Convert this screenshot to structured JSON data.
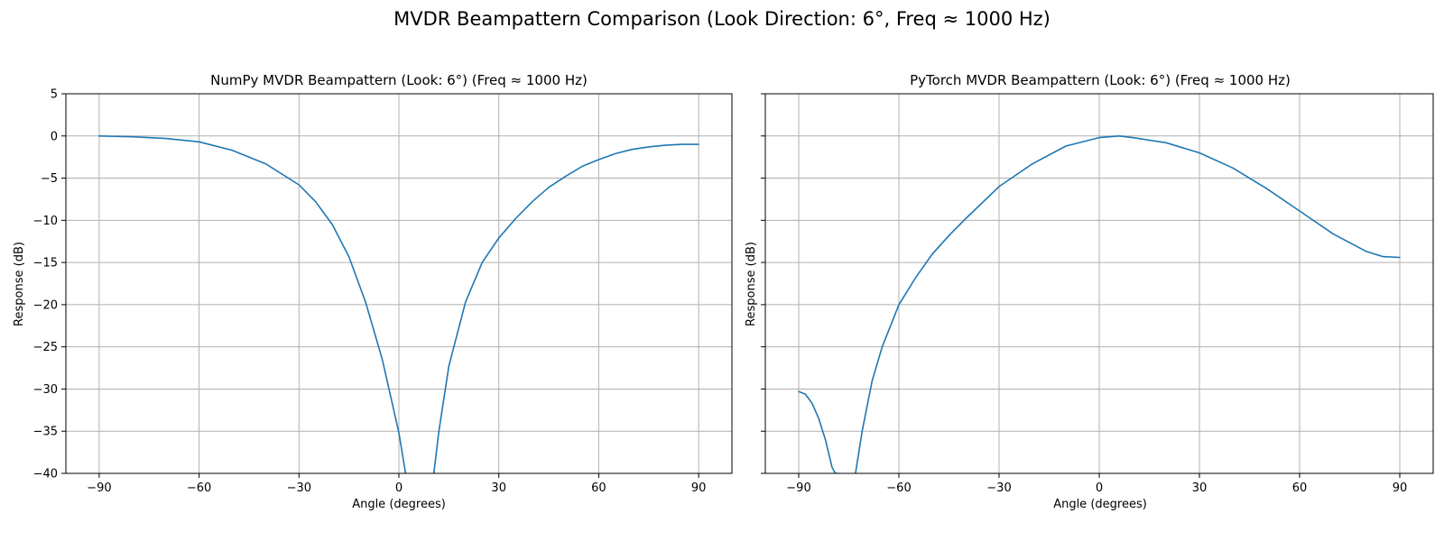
{
  "figure": {
    "title": "MVDR Beampattern Comparison (Look Direction: 6°, Freq ≈ 1000 Hz)"
  },
  "chart_data": [
    {
      "type": "line",
      "title": "NumPy MVDR Beampattern (Look: 6°) (Freq ≈ 1000 Hz)",
      "xlabel": "Angle (degrees)",
      "ylabel": "Response (dB)",
      "xlim": [
        -100,
        100
      ],
      "ylim": [
        -40,
        5
      ],
      "xticks": [
        -90,
        -60,
        -30,
        0,
        30,
        60,
        90
      ],
      "yticks": [
        5,
        0,
        -5,
        -10,
        -15,
        -20,
        -25,
        -30,
        -35,
        -40
      ],
      "xtick_labels": [
        "−90",
        "−60",
        "−30",
        "0",
        "30",
        "60",
        "90"
      ],
      "ytick_labels": [
        "5",
        "0",
        "−5",
        "−10",
        "−15",
        "−20",
        "−25",
        "−30",
        "−35",
        "−40"
      ],
      "show_ytick_labels": true,
      "grid": true,
      "color": "#1f77b4",
      "segments": [
        {
          "x": [
            -90,
            -80,
            -70,
            -60,
            -50,
            -40,
            -30,
            -25,
            -20,
            -15,
            -10,
            -5,
            0,
            1,
            2
          ],
          "y": [
            0.0,
            -0.1,
            -0.3,
            -0.7,
            -1.7,
            -3.3,
            -5.8,
            -7.8,
            -10.5,
            -14.3,
            -19.7,
            -26.5,
            -35.2,
            -37.6,
            -40.0
          ]
        },
        {
          "x": [
            10.5,
            12,
            15,
            20,
            25,
            30,
            35,
            40,
            45,
            50,
            55,
            60,
            65,
            70,
            75,
            80,
            85,
            90
          ],
          "y": [
            -40.0,
            -35.0,
            -27.3,
            -19.7,
            -15.0,
            -12.1,
            -9.8,
            -7.8,
            -6.1,
            -4.8,
            -3.6,
            -2.8,
            -2.1,
            -1.6,
            -1.3,
            -1.1,
            -1.0,
            -1.0
          ]
        }
      ]
    },
    {
      "type": "line",
      "title": "PyTorch MVDR Beampattern (Look: 6°) (Freq ≈ 1000 Hz)",
      "xlabel": "Angle (degrees)",
      "ylabel": "Response (dB)",
      "xlim": [
        -100,
        100
      ],
      "ylim": [
        -40,
        5
      ],
      "xticks": [
        -90,
        -60,
        -30,
        0,
        30,
        60,
        90
      ],
      "yticks": [
        5,
        0,
        -5,
        -10,
        -15,
        -20,
        -25,
        -30,
        -35,
        -40
      ],
      "xtick_labels": [
        "−90",
        "−60",
        "−30",
        "0",
        "30",
        "60",
        "90"
      ],
      "ytick_labels": [],
      "show_ytick_labels": false,
      "grid": true,
      "color": "#1f77b4",
      "segments": [
        {
          "x": [
            -90,
            -88,
            -86,
            -84,
            -82,
            -80,
            -79,
            -78
          ],
          "y": [
            -30.3,
            -30.6,
            -31.7,
            -33.5,
            -36.0,
            -39.3,
            -40.0,
            -40.0
          ]
        },
        {
          "x": [
            -73,
            -71,
            -68,
            -65,
            -60,
            -55,
            -50,
            -45,
            -40,
            -30,
            -20,
            -10,
            0,
            6,
            10,
            20,
            30,
            40,
            50,
            60,
            70,
            80,
            85,
            90
          ],
          "y": [
            -40.0,
            -35.0,
            -29.0,
            -25.0,
            -20.0,
            -16.8,
            -14.0,
            -11.8,
            -9.8,
            -6.0,
            -3.3,
            -1.2,
            -0.2,
            0.0,
            -0.2,
            -0.8,
            -2.0,
            -3.8,
            -6.2,
            -8.9,
            -11.6,
            -13.7,
            -14.3,
            -14.4
          ]
        }
      ]
    }
  ]
}
